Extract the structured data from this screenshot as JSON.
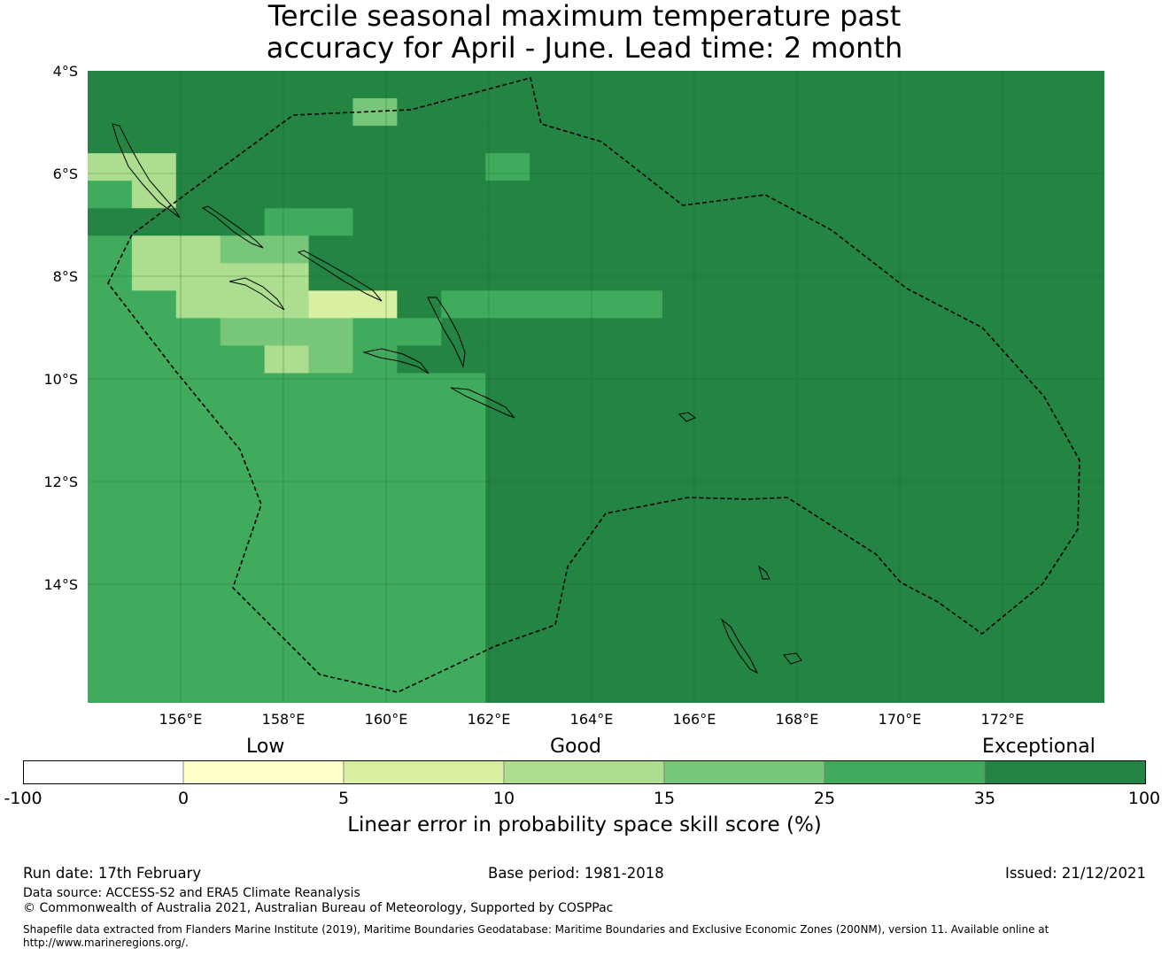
{
  "title": {
    "line1": "Tercile seasonal maximum temperature past",
    "line2": "accuracy for April - June. Lead time: 2 month"
  },
  "map": {
    "lat_labels": [
      "4°S",
      "6°S",
      "8°S",
      "10°S",
      "12°S",
      "14°S"
    ],
    "lon_labels": [
      "156°E",
      "158°E",
      "160°E",
      "162°E",
      "164°E",
      "166°E",
      "168°E",
      "170°E",
      "172°E"
    ],
    "boundary_style": "dashed black",
    "grid": true,
    "palette": [
      "#ffffff",
      "#ffffcc",
      "#d9f0a3",
      "#addd8e",
      "#78c679",
      "#41ab5d",
      "#238443"
    ],
    "skill_grid": [
      "66666666666666666666666",
      "66666646666666666666666",
      "66666666666666666666666",
      "33666666656666666666666",
      "53666666666666666666666",
      "66665566666666666666666",
      "53344666666666666666666",
      "53333666666666666666666",
      "55333226555556666666666",
      "55544455666666666666666",
      "55553456666666666666666",
      "55555555566666666666666",
      "55555555566666666666666",
      "55555555566666666666666",
      "55555555566666666666666",
      "55555555566666666666666",
      "55555555566666666666666",
      "55555555566666666666666",
      "55555555566666666666666",
      "55555555566666666666666",
      "55555555566666666666666",
      "55555555566666666666666",
      "55555555566666666666666"
    ]
  },
  "colorbar": {
    "categories": [
      "Low",
      "Good",
      "Exceptional"
    ],
    "bins": [
      {
        "lo": "-100",
        "hi": "0",
        "color": "#ffffff"
      },
      {
        "lo": "0",
        "hi": "5",
        "color": "#ffffcc"
      },
      {
        "lo": "5",
        "hi": "10",
        "color": "#d9f0a3"
      },
      {
        "lo": "10",
        "hi": "15",
        "color": "#addd8e"
      },
      {
        "lo": "15",
        "hi": "25",
        "color": "#78c679"
      },
      {
        "lo": "25",
        "hi": "35",
        "color": "#41ab5d"
      },
      {
        "lo": "35",
        "hi": "100",
        "color": "#238443"
      }
    ],
    "ticks": [
      "-100",
      "0",
      "5",
      "10",
      "15",
      "25",
      "35",
      "100"
    ],
    "label": "Linear error in probability space skill score (%)"
  },
  "footer": {
    "run_date": "Run date: 17th February",
    "base_period": "Base period: 1981-2018",
    "issued": "Issued: 21/12/2021",
    "data_source": "Data source: ACCESS-S2 and ERA5 Climate Reanalysis",
    "copyright": "© Commonwealth of Australia 2021, Australian Bureau of Meteorology, Supported by COSPPac",
    "shapefile_line1": "Shapefile data extracted from Flanders Marine Institute (2019), Maritime Boundaries Geodatabase: Maritime Boundaries and Exclusive Economic Zones (200NM), version 11. Available online at",
    "shapefile_line2": "http://www.marineregions.org/."
  }
}
